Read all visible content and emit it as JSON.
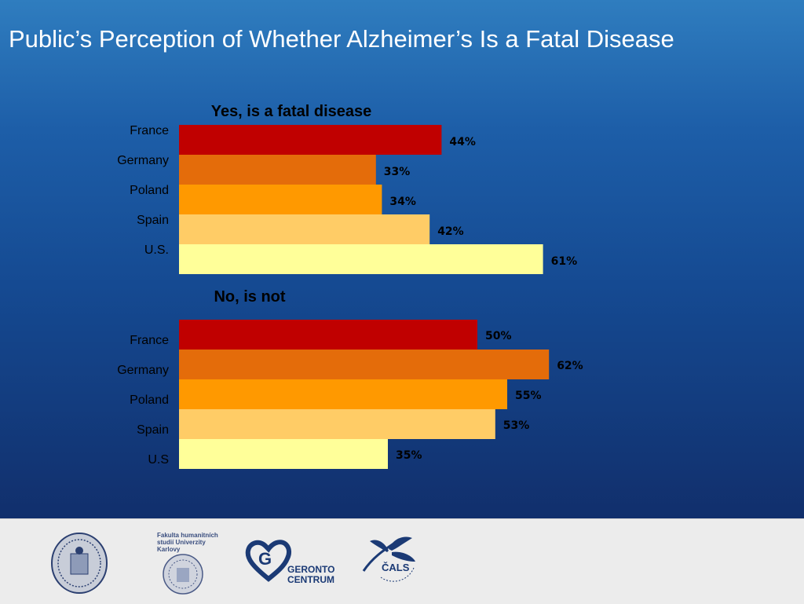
{
  "page": {
    "title": "Public’s Perception of Whether Alzheimer’s Is a Fatal Disease"
  },
  "colors": {
    "France": "#c00000",
    "Germany": "#e46c0a",
    "Poland": "#ff9900",
    "Spain": "#ffcc66",
    "U.S.": "#ffff99"
  },
  "chart_data": [
    {
      "type": "bar",
      "orientation": "horizontal",
      "title": "Yes, is a fatal disease",
      "categories": [
        "France",
        "Germany",
        "Poland",
        "Spain",
        "U.S."
      ],
      "values": [
        44,
        33,
        34,
        42,
        61
      ],
      "data_labels": [
        "44%",
        "33%",
        "34%",
        "42%",
        "61%"
      ],
      "unit": "%",
      "xlim": [
        0,
        100
      ],
      "grid": false,
      "legend": "none"
    },
    {
      "type": "bar",
      "orientation": "horizontal",
      "title": "No, is not",
      "categories": [
        "France",
        "Germany",
        "Poland",
        "Spain",
        "U.S"
      ],
      "values": [
        50,
        62,
        55,
        53,
        35
      ],
      "data_labels": [
        "50%",
        "62%",
        "55%",
        "53%",
        "35%"
      ],
      "unit": "%",
      "xlim": [
        0,
        100
      ],
      "grid": false,
      "legend": "none"
    }
  ],
  "footer": {
    "logos": [
      {
        "icon": "university-seal-icon"
      },
      {
        "icon": "faculty-seal-icon",
        "text": "Fakulta humanitních studií Univerzity Karlovy"
      },
      {
        "icon": "gerontocentrum-icon",
        "text_line1": "GERONTO",
        "text_line2": "CENTRUM"
      },
      {
        "icon": "cals-dragonfly-icon",
        "text": "ČALS"
      }
    ]
  }
}
